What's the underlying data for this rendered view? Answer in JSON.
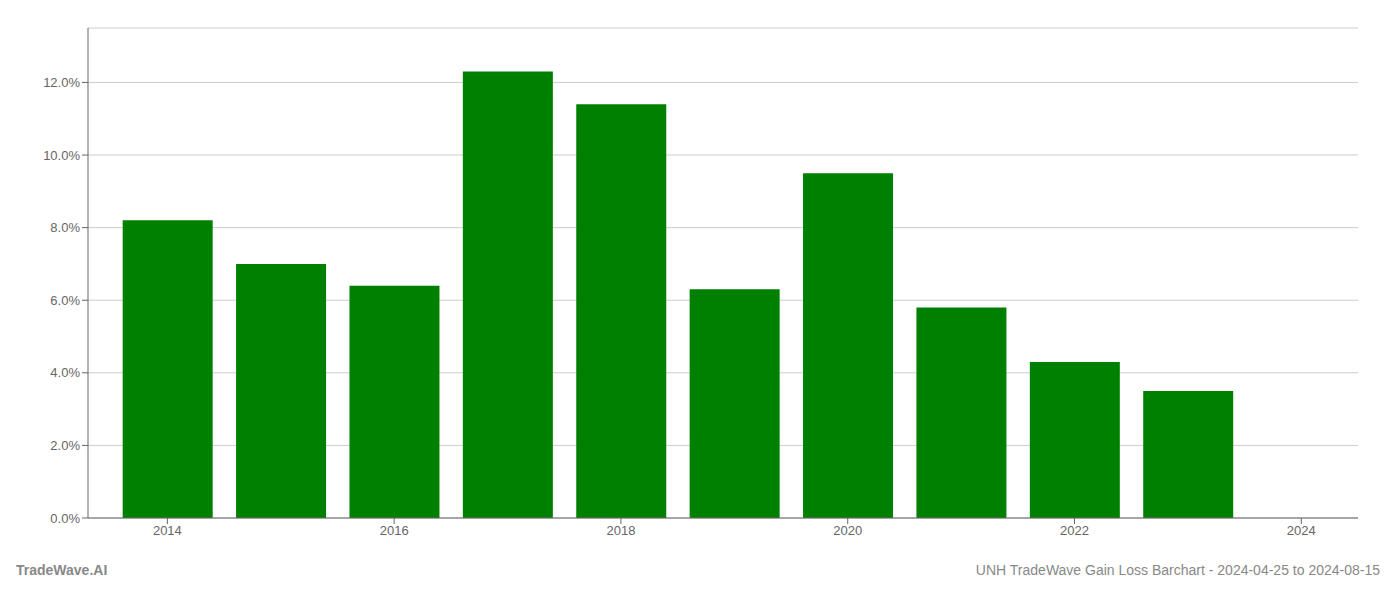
{
  "chart_data": {
    "type": "bar",
    "x": [
      2014,
      2015,
      2016,
      2017,
      2018,
      2019,
      2020,
      2021,
      2022,
      2023
    ],
    "values": [
      0.082,
      0.07,
      0.064,
      0.123,
      0.114,
      0.063,
      0.095,
      0.058,
      0.043,
      0.035
    ],
    "color": "#008000",
    "xlim": [
      2013.3,
      2024.5
    ],
    "xticks": [
      2014,
      2016,
      2018,
      2020,
      2022,
      2024
    ],
    "ylim": [
      0,
      0.135
    ],
    "yticks": [
      {
        "value": 0.0,
        "label": "0.0%"
      },
      {
        "value": 0.02,
        "label": "2.0%"
      },
      {
        "value": 0.04,
        "label": "4.0%"
      },
      {
        "value": 0.06,
        "label": "6.0%"
      },
      {
        "value": 0.08,
        "label": "8.0%"
      },
      {
        "value": 0.1,
        "label": "10.0%"
      },
      {
        "value": 0.12,
        "label": "12.0%"
      }
    ],
    "grid": true,
    "annotations": [
      "TradeWave.AI",
      "UNH TradeWave Gain Loss Barchart - 2024-04-25 to 2024-08-15"
    ]
  }
}
